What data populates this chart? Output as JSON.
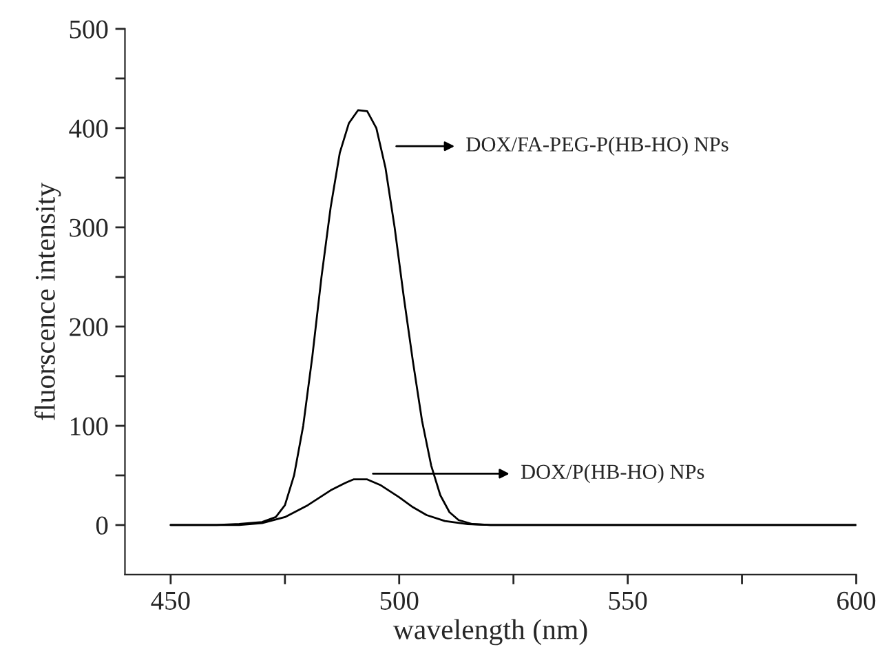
{
  "chart_data": {
    "type": "line",
    "xlabel": "wavelength (nm)",
    "ylabel": "fluorscence intensity",
    "series": [
      {
        "color": "#000000",
        "x": [
          450,
          460,
          465,
          470,
          473,
          475,
          477,
          479,
          481,
          483,
          485,
          487,
          489,
          491,
          493,
          495,
          497,
          499,
          501,
          503,
          505,
          507,
          509,
          511,
          513,
          516,
          520,
          600
        ],
        "values": [
          0,
          0,
          1,
          3,
          8,
          20,
          50,
          100,
          170,
          250,
          320,
          375,
          405,
          418,
          417,
          400,
          360,
          300,
          230,
          165,
          105,
          60,
          30,
          13,
          5,
          1,
          0,
          0
        ]
      },
      {
        "color": "#000000",
        "x": [
          450,
          465,
          470,
          475,
          480,
          485,
          488,
          489,
          490,
          493,
          496,
          500,
          503,
          506,
          510,
          515,
          520,
          600
        ],
        "values": [
          0,
          0,
          2,
          8,
          20,
          35,
          42,
          44,
          46,
          46,
          40,
          28,
          18,
          10,
          4,
          1,
          0,
          0
        ]
      }
    ],
    "annotations": [
      "DOX/FA-PEG-P(HB-HO) NPs",
      "DOX/P(HB-HO) NPs"
    ],
    "xlim": [
      440,
      600
    ],
    "ylim": [
      -50,
      500
    ],
    "xticks": [
      450,
      {
        "value": 475,
        "label": null
      },
      500,
      {
        "value": 525,
        "label": null
      },
      550,
      {
        "value": 575,
        "label": null
      },
      600
    ],
    "yticks": [
      0,
      {
        "value": 50,
        "label": null
      },
      100,
      {
        "value": 150,
        "label": null
      },
      200,
      {
        "value": 250,
        "label": null
      },
      300,
      {
        "value": 350,
        "label": null
      },
      400,
      {
        "value": 450,
        "label": null
      },
      500
    ],
    "grid": false,
    "legend": false,
    "marker": "none",
    "line_style": "solid"
  }
}
